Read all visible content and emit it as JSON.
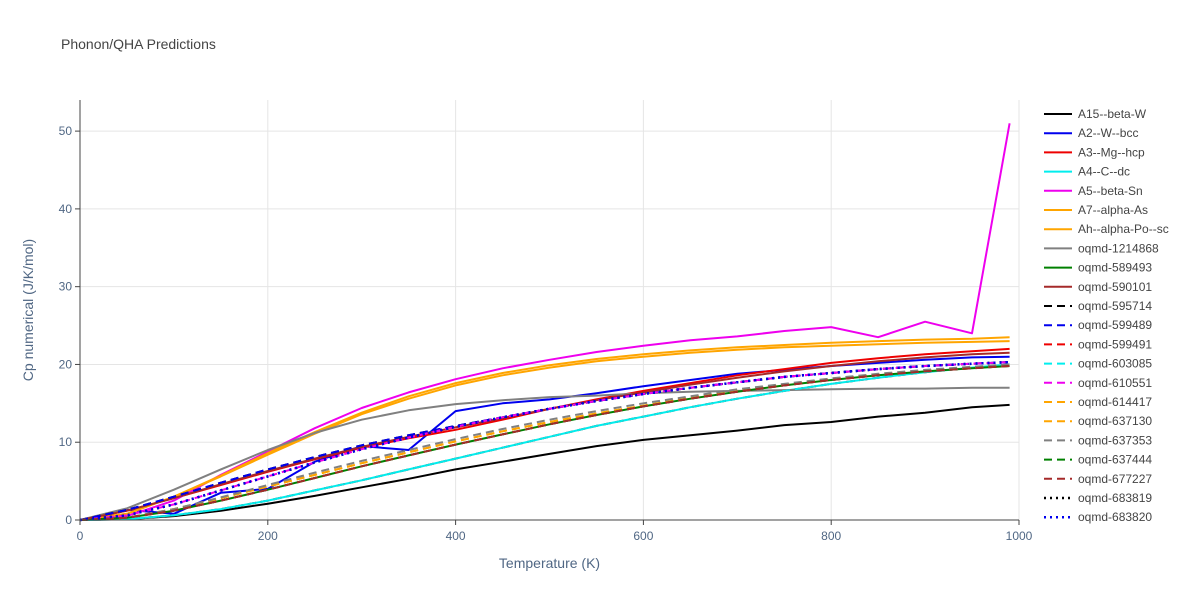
{
  "title": "Phonon/QHA Predictions",
  "chart_data": {
    "type": "line",
    "title": "Phonon/QHA Predictions",
    "xlabel": "Temperature (K)",
    "ylabel": "Cp numerical (J/K/mol)",
    "xlim": [
      0,
      1000
    ],
    "ylim": [
      0,
      54
    ],
    "x_ticks": [
      0,
      200,
      400,
      600,
      800,
      1000
    ],
    "y_ticks": [
      0,
      10,
      20,
      30,
      40,
      50
    ],
    "grid": true,
    "legend_position": "right",
    "x": [
      0,
      50,
      100,
      150,
      200,
      250,
      300,
      350,
      400,
      450,
      500,
      550,
      600,
      650,
      700,
      750,
      800,
      850,
      900,
      950,
      990
    ],
    "series": [
      {
        "name": "A15--beta-W",
        "color": "#000000",
        "dash": "solid",
        "values": [
          0,
          0.1,
          0.5,
          1.2,
          2.1,
          3.1,
          4.2,
          5.3,
          6.5,
          7.5,
          8.5,
          9.5,
          10.3,
          10.9,
          11.5,
          12.2,
          12.6,
          13.3,
          13.8,
          14.5,
          14.8
        ]
      },
      {
        "name": "A2--W--bcc",
        "color": "#0000ee",
        "dash": "solid",
        "values": [
          0,
          1.3,
          0.8,
          3.5,
          4.0,
          7.5,
          9.5,
          9.0,
          14.0,
          15.0,
          15.5,
          16.3,
          17.2,
          18.0,
          18.8,
          19.3,
          19.8,
          20.2,
          20.6,
          20.9,
          21.0
        ]
      },
      {
        "name": "A3--Mg--hcp",
        "color": "#ee0000",
        "dash": "solid",
        "values": [
          0,
          1.2,
          2.8,
          4.5,
          6.2,
          7.8,
          9.3,
          10.5,
          11.6,
          12.9,
          14.3,
          15.5,
          16.6,
          17.6,
          18.6,
          19.4,
          20.2,
          20.8,
          21.3,
          21.7,
          22.0
        ]
      },
      {
        "name": "A4--C--dc",
        "color": "#00eeee",
        "dash": "solid",
        "values": [
          0,
          0.1,
          0.6,
          1.4,
          2.5,
          3.8,
          5.1,
          6.5,
          7.9,
          9.3,
          10.7,
          12.1,
          13.3,
          14.5,
          15.6,
          16.6,
          17.5,
          18.3,
          19.0,
          19.6,
          20.0
        ]
      },
      {
        "name": "A5--beta-Sn",
        "color": "#ee00ee",
        "dash": "solid",
        "values": [
          0,
          0.5,
          2.5,
          5.8,
          8.8,
          11.8,
          14.4,
          16.4,
          18.1,
          19.5,
          20.6,
          21.6,
          22.4,
          23.1,
          23.6,
          24.3,
          24.8,
          23.5,
          25.5,
          24.0,
          51.0
        ]
      },
      {
        "name": "A7--alpha-As",
        "color": "#ffa500",
        "dash": "solid",
        "values": [
          0,
          0.8,
          3.0,
          5.7,
          8.6,
          11.3,
          13.8,
          15.9,
          17.6,
          18.9,
          19.9,
          20.7,
          21.3,
          21.8,
          22.2,
          22.5,
          22.8,
          23.0,
          23.2,
          23.3,
          23.5
        ]
      },
      {
        "name": "Ah--alpha-Po--sc",
        "color": "#ffa500",
        "dash": "solid",
        "values": [
          0,
          0.8,
          3.0,
          5.6,
          8.4,
          11.1,
          13.6,
          15.6,
          17.3,
          18.6,
          19.6,
          20.4,
          21.0,
          21.5,
          21.9,
          22.2,
          22.4,
          22.6,
          22.8,
          22.9,
          23.0
        ]
      },
      {
        "name": "oqmd-1214868",
        "color": "#808080",
        "dash": "solid",
        "values": [
          0,
          1.5,
          3.9,
          6.5,
          9.0,
          11.2,
          12.9,
          14.1,
          14.9,
          15.4,
          15.8,
          16.0,
          16.3,
          16.5,
          16.6,
          16.7,
          16.8,
          16.9,
          16.9,
          17.0,
          17.0
        ]
      },
      {
        "name": "oqmd-589493",
        "color": "#008000",
        "dash": "solid",
        "values": [
          0,
          0.3,
          1.2,
          2.5,
          3.9,
          5.4,
          6.9,
          8.3,
          9.7,
          11.0,
          12.3,
          13.5,
          14.6,
          15.6,
          16.5,
          17.3,
          18.0,
          18.6,
          19.1,
          19.5,
          19.8
        ]
      },
      {
        "name": "oqmd-590101",
        "color": "#a52a2a",
        "dash": "solid",
        "values": [
          0,
          1.2,
          2.8,
          4.6,
          6.3,
          7.9,
          9.4,
          10.7,
          11.9,
          13.1,
          14.3,
          15.4,
          16.4,
          17.4,
          18.3,
          19.1,
          19.8,
          20.4,
          20.9,
          21.3,
          21.5
        ]
      },
      {
        "name": "oqmd-595714",
        "color": "#000000",
        "dash": "dash",
        "values": [
          0,
          1.3,
          3.0,
          4.8,
          6.5,
          8.1,
          9.6,
          10.9,
          12.1,
          13.2,
          14.3,
          15.3,
          16.2,
          17.0,
          17.7,
          18.4,
          18.9,
          19.4,
          19.8,
          20.1,
          20.3
        ]
      },
      {
        "name": "oqmd-599489",
        "color": "#0000ee",
        "dash": "dash",
        "values": [
          0,
          1.3,
          3.0,
          4.8,
          6.5,
          8.1,
          9.6,
          10.9,
          12.1,
          13.2,
          14.3,
          15.3,
          16.2,
          17.0,
          17.7,
          18.4,
          18.9,
          19.4,
          19.8,
          20.1,
          20.3
        ]
      },
      {
        "name": "oqmd-599491",
        "color": "#ee0000",
        "dash": "dash",
        "values": [
          0,
          0.1,
          0.6,
          1.4,
          2.5,
          3.8,
          5.1,
          6.5,
          7.9,
          9.3,
          10.7,
          12.1,
          13.3,
          14.5,
          15.6,
          16.6,
          17.5,
          18.3,
          19.0,
          19.6,
          20.0
        ]
      },
      {
        "name": "oqmd-603085",
        "color": "#00eeee",
        "dash": "dash",
        "values": [
          0,
          0.1,
          0.6,
          1.4,
          2.5,
          3.8,
          5.1,
          6.5,
          7.9,
          9.3,
          10.7,
          12.1,
          13.3,
          14.5,
          15.6,
          16.6,
          17.5,
          18.3,
          19.0,
          19.6,
          20.0
        ]
      },
      {
        "name": "oqmd-610551",
        "color": "#ee00ee",
        "dash": "dash",
        "values": [
          0,
          0.6,
          2.0,
          3.8,
          5.6,
          7.4,
          9.1,
          10.6,
          12.0,
          13.2,
          14.3,
          15.3,
          16.2,
          17.0,
          17.7,
          18.4,
          18.9,
          19.4,
          19.8,
          20.1,
          20.3
        ]
      },
      {
        "name": "oqmd-614417",
        "color": "#ffa500",
        "dash": "dash",
        "values": [
          0,
          0.3,
          1.4,
          2.8,
          4.3,
          5.8,
          7.3,
          8.7,
          10.1,
          11.4,
          12.6,
          13.7,
          14.7,
          15.7,
          16.6,
          17.4,
          18.1,
          18.7,
          19.2,
          19.6,
          19.9
        ]
      },
      {
        "name": "oqmd-637130",
        "color": "#ffa500",
        "dash": "dash",
        "values": [
          0,
          0.3,
          1.4,
          2.8,
          4.3,
          5.8,
          7.3,
          8.7,
          10.1,
          11.4,
          12.6,
          13.7,
          14.7,
          15.7,
          16.6,
          17.4,
          18.1,
          18.7,
          19.2,
          19.6,
          19.9
        ]
      },
      {
        "name": "oqmd-637353",
        "color": "#808080",
        "dash": "dash",
        "values": [
          0,
          0.3,
          1.4,
          2.9,
          4.5,
          6.1,
          7.6,
          9.0,
          10.4,
          11.7,
          12.9,
          14.0,
          15.0,
          15.9,
          16.8,
          17.5,
          18.2,
          18.8,
          19.3,
          19.7,
          20.0
        ]
      },
      {
        "name": "oqmd-637444",
        "color": "#008000",
        "dash": "dash",
        "values": [
          0,
          0.3,
          1.2,
          2.5,
          3.9,
          5.4,
          6.9,
          8.3,
          9.7,
          11.0,
          12.3,
          13.5,
          14.6,
          15.6,
          16.5,
          17.3,
          18.0,
          18.6,
          19.1,
          19.5,
          19.8
        ]
      },
      {
        "name": "oqmd-677227",
        "color": "#a52a2a",
        "dash": "dash",
        "values": [
          0,
          0.3,
          1.2,
          2.5,
          3.9,
          5.4,
          6.9,
          8.3,
          9.7,
          11.0,
          12.3,
          13.5,
          14.6,
          15.6,
          16.5,
          17.3,
          18.0,
          18.6,
          19.1,
          19.5,
          19.8
        ]
      },
      {
        "name": "oqmd-683819",
        "color": "#000000",
        "dash": "dot",
        "values": [
          0,
          0.6,
          2.0,
          3.8,
          5.6,
          7.4,
          9.1,
          10.6,
          12.0,
          13.2,
          14.3,
          15.3,
          16.2,
          17.0,
          17.7,
          18.4,
          18.9,
          19.4,
          19.8,
          20.1,
          20.3
        ]
      },
      {
        "name": "oqmd-683820",
        "color": "#0000ee",
        "dash": "dot",
        "values": [
          0,
          0.6,
          2.0,
          3.8,
          5.6,
          7.4,
          9.1,
          10.6,
          12.0,
          13.2,
          14.3,
          15.3,
          16.2,
          17.0,
          17.7,
          18.4,
          18.9,
          19.4,
          19.8,
          20.1,
          20.3
        ]
      }
    ]
  }
}
